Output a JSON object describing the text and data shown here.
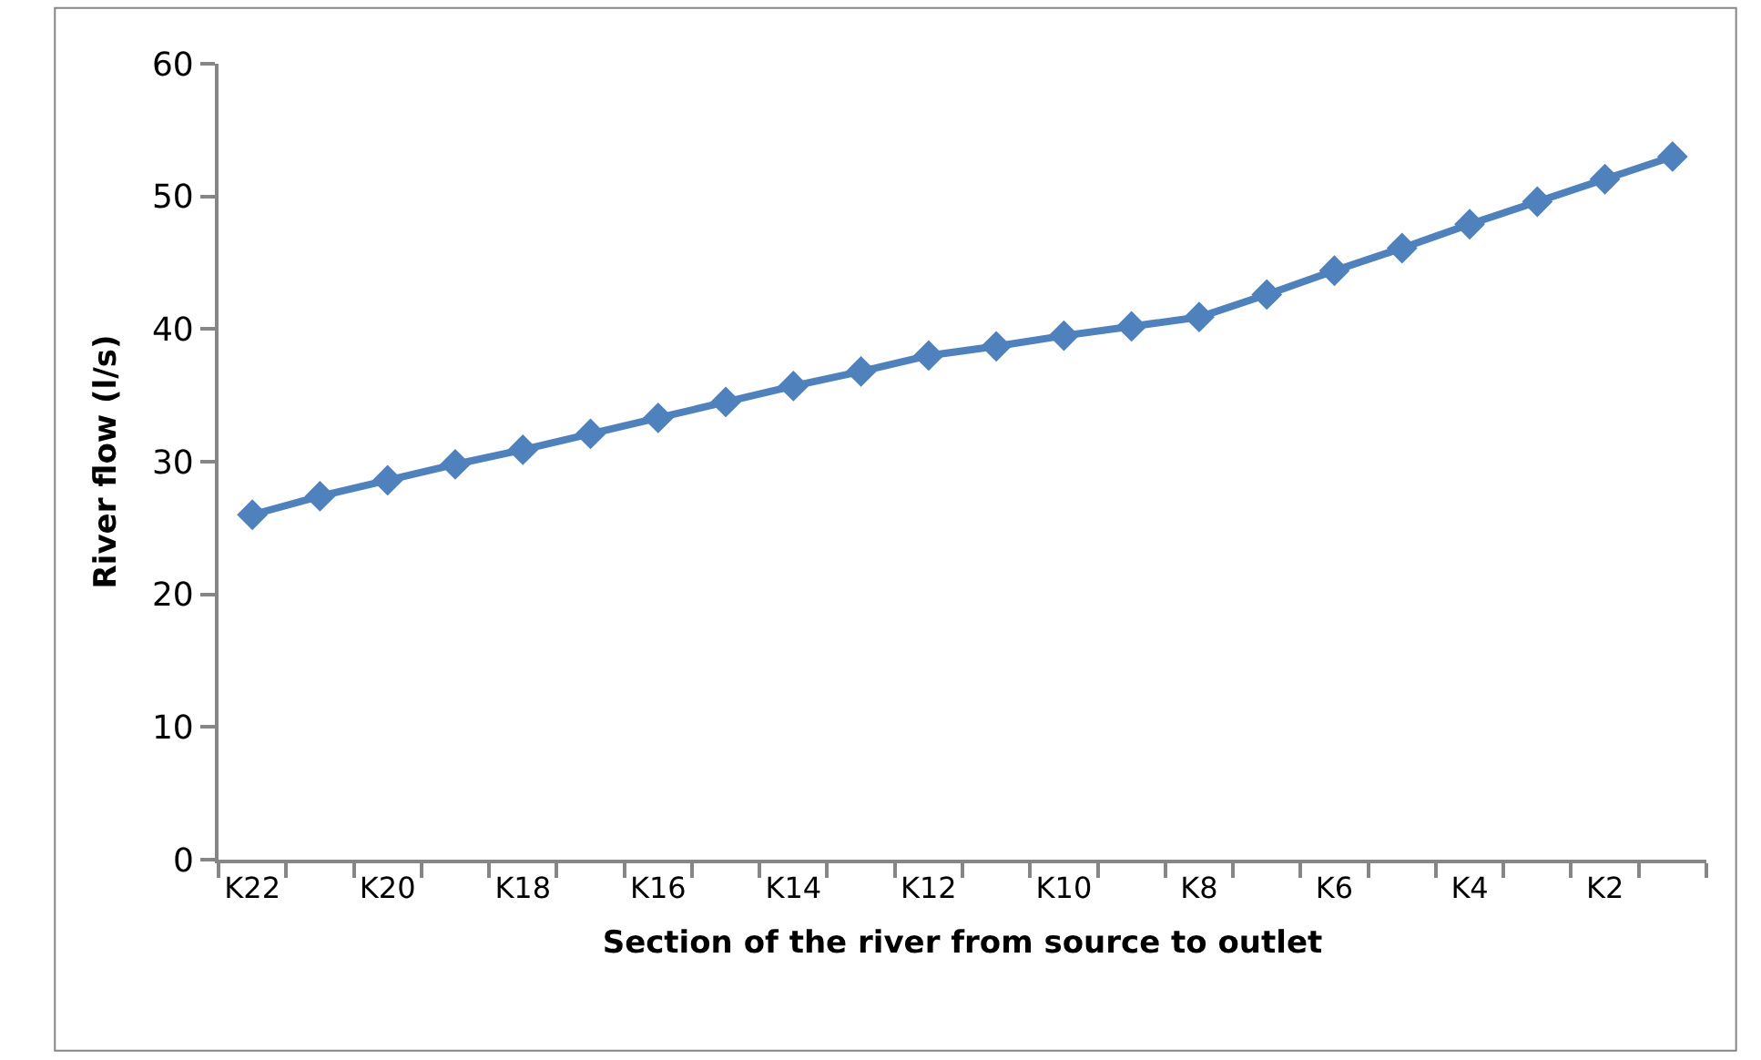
{
  "chart_data": {
    "type": "line",
    "xlabel": "Section of the river from source to outlet",
    "ylabel": "River flow (l/s)",
    "categories": [
      "K22",
      null,
      "K20",
      null,
      "K18",
      null,
      "K16",
      null,
      "K14",
      null,
      "K12",
      null,
      "K10",
      null,
      "K8",
      null,
      "K6",
      null,
      "K4",
      null,
      "K2",
      null
    ],
    "series": [
      {
        "color": "#4f81bd",
        "values": [
          26.0,
          27.4,
          28.6,
          29.8,
          30.9,
          32.1,
          33.3,
          34.5,
          35.7,
          36.8,
          38.0,
          38.7,
          39.5,
          40.2,
          40.9,
          42.6,
          44.4,
          46.1,
          47.9,
          49.6,
          51.3,
          53.0
        ]
      }
    ],
    "ylim": [
      0,
      60
    ],
    "yticks": [
      0,
      10,
      20,
      30,
      40,
      50,
      60
    ],
    "marker": "diamond",
    "line_style": "solid"
  }
}
